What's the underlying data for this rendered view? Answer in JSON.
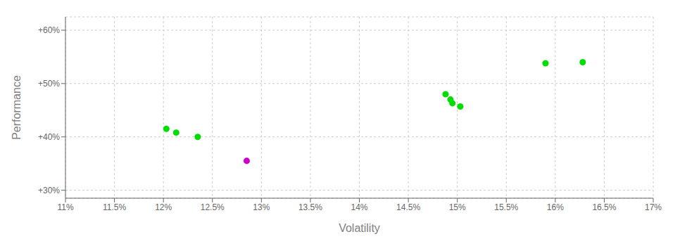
{
  "chart_data": {
    "type": "scatter",
    "xlabel": "Volatility",
    "ylabel": "Performance",
    "x": [
      0.1203,
      0.1213,
      0.1235,
      0.1285,
      0.1488,
      0.1493,
      0.1495,
      0.1503,
      0.159,
      0.1628
    ],
    "values": [
      0.415,
      0.408,
      0.4,
      0.355,
      0.48,
      0.47,
      0.463,
      0.457,
      0.538,
      0.54
    ],
    "colors": [
      "#00dd00",
      "#00dd00",
      "#00dd00",
      "#cc00cc",
      "#00dd00",
      "#00dd00",
      "#00dd00",
      "#00dd00",
      "#00dd00",
      "#00dd00"
    ],
    "xlim": [
      0.11,
      0.17
    ],
    "ylim": [
      0.285,
      0.625
    ],
    "xticks": [
      {
        "value": 0.11,
        "label": "11%"
      },
      {
        "value": 0.115,
        "label": "11.5%"
      },
      {
        "value": 0.12,
        "label": "12%"
      },
      {
        "value": 0.125,
        "label": "12.5%"
      },
      {
        "value": 0.13,
        "label": "13%"
      },
      {
        "value": 0.135,
        "label": "13.5%"
      },
      {
        "value": 0.14,
        "label": "14%"
      },
      {
        "value": 0.145,
        "label": "14.5%"
      },
      {
        "value": 0.15,
        "label": "15%"
      },
      {
        "value": 0.155,
        "label": "15.5%"
      },
      {
        "value": 0.16,
        "label": "16%"
      },
      {
        "value": 0.165,
        "label": "16.5%"
      },
      {
        "value": 0.17,
        "label": "17%"
      }
    ],
    "yticks": [
      {
        "value": 0.3,
        "label": "+30%"
      },
      {
        "value": 0.4,
        "label": "+40%"
      },
      {
        "value": 0.5,
        "label": "+50%"
      },
      {
        "value": 0.6,
        "label": "+60%"
      }
    ],
    "grid": true
  }
}
